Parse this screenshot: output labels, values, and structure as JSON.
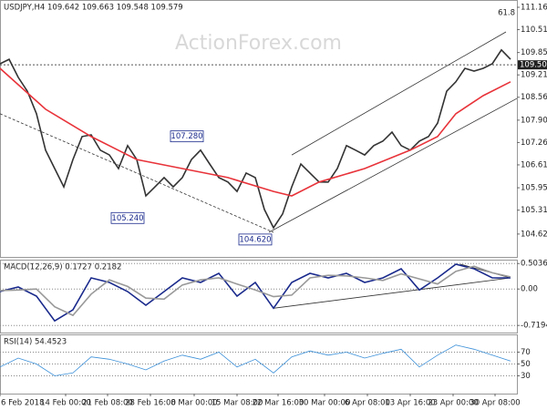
{
  "chart_data": [
    {
      "type": "line",
      "title": "USDJPY,H4  109.642 109.663 109.548 109.579",
      "watermark": "ActionForex.com",
      "xlim": [
        0,
        56.7
      ],
      "ylim": [
        103.96,
        111.37
      ],
      "yticks": [
        {
          "value": 111.16,
          "label": "111.160"
        },
        110.515,
        109.855,
        {
          "value": 109.21,
          "label": "109.210"
        },
        108.565,
        107.905,
        {
          "value": 107.26,
          "label": "107.260"
        },
        106.615,
        105.955,
        {
          "value": 105.31,
          "label": "105.310"
        },
        104.62
      ],
      "grid": false,
      "hline": {
        "value": 109.5,
        "label": "109.500"
      },
      "corner_note": "61.8",
      "series": [
        {
          "color": "#333333",
          "x": [
            0,
            1,
            2,
            3,
            4,
            5,
            6,
            7,
            8,
            9,
            10,
            11,
            12,
            13,
            14,
            15,
            16,
            17,
            18,
            19,
            20,
            21,
            22,
            23,
            24,
            25,
            26,
            27,
            28,
            29,
            30,
            31,
            32,
            33,
            34,
            35,
            36,
            37,
            38,
            39,
            40,
            41,
            42,
            43,
            44,
            45,
            46,
            47,
            48,
            49,
            50,
            51,
            52,
            53,
            54,
            55,
            56
          ],
          "values": [
            109.53,
            109.66,
            109.14,
            108.74,
            108.09,
            107.04,
            106.51,
            105.98,
            106.77,
            107.43,
            107.48,
            107.04,
            106.9,
            106.51,
            107.17,
            106.77,
            105.72,
            105.98,
            106.25,
            105.98,
            106.25,
            106.77,
            107.04,
            106.64,
            106.25,
            106.12,
            105.85,
            106.38,
            106.25,
            105.33,
            104.8,
            105.2,
            105.98,
            106.64,
            106.38,
            106.12,
            106.12,
            106.51,
            107.17,
            107.04,
            106.9,
            107.17,
            107.3,
            107.56,
            107.17,
            107.04,
            107.3,
            107.43,
            107.82,
            108.74,
            109.01,
            109.4,
            109.32,
            109.4,
            109.53,
            109.93,
            109.66
          ]
        },
        {
          "color": "#e8333a",
          "x": [
            0,
            5,
            10,
            15,
            20,
            25,
            30,
            32,
            35,
            40,
            45,
            48,
            50,
            53,
            56
          ],
          "values": [
            109.4,
            108.22,
            107.43,
            106.77,
            106.51,
            106.25,
            105.85,
            105.72,
            106.12,
            106.51,
            107.04,
            107.43,
            108.09,
            108.61,
            109.01
          ]
        }
      ],
      "trendlines": [
        {
          "color": "#333333",
          "x": [
            32,
            55.5
          ],
          "values": [
            106.9,
            110.45
          ]
        },
        {
          "color": "#333333",
          "x": [
            29.5,
            56.7
          ],
          "values": [
            104.67,
            108.53
          ]
        },
        {
          "color": "#333333",
          "dash": true,
          "x": [
            0,
            30
          ],
          "values": [
            108.09,
            104.67
          ]
        }
      ],
      "annotations": [
        {
          "label": "107.280",
          "value": 107.28,
          "x": 20.5
        },
        {
          "label": "105.240",
          "value": 105.24,
          "x": 14
        },
        {
          "label": "104.620",
          "value": 104.62,
          "x": 28
        }
      ]
    },
    {
      "type": "line",
      "title": "MACD(12,26,9) 0.1727 0.2182",
      "xlim": [
        0,
        56.7
      ],
      "ylim": [
        -0.86,
        0.58
      ],
      "yticks": [
        0.5036,
        {
          "value": 0,
          "label": "0.00"
        },
        -0.7194
      ],
      "grid": true,
      "series": [
        {
          "color": "#1a2a8c",
          "x": [
            0,
            2,
            4,
            6,
            8,
            10,
            12,
            14,
            16,
            18,
            20,
            22,
            24,
            26,
            28,
            30,
            32,
            34,
            36,
            38,
            40,
            42,
            44,
            46,
            48,
            50,
            52,
            54,
            56
          ],
          "values": [
            -0.05,
            0.04,
            -0.14,
            -0.63,
            -0.41,
            0.22,
            0.13,
            -0.05,
            -0.32,
            -0.05,
            0.22,
            0.13,
            0.31,
            -0.14,
            0.13,
            -0.38,
            0.13,
            0.31,
            0.22,
            0.31,
            0.13,
            0.22,
            0.4,
            -0.02,
            0.22,
            0.49,
            0.4,
            0.22,
            0.22
          ]
        },
        {
          "color": "#999999",
          "x": [
            0,
            2,
            4,
            6,
            8,
            10,
            12,
            14,
            16,
            18,
            20,
            22,
            24,
            26,
            28,
            30,
            32,
            34,
            36,
            38,
            40,
            42,
            44,
            46,
            48,
            50,
            52,
            54,
            56
          ],
          "values": [
            -0.03,
            -0.02,
            0.0,
            -0.35,
            -0.52,
            -0.1,
            0.18,
            0.05,
            -0.18,
            -0.2,
            0.08,
            0.18,
            0.22,
            0.1,
            -0.02,
            -0.15,
            -0.12,
            0.22,
            0.27,
            0.26,
            0.22,
            0.17,
            0.3,
            0.2,
            0.1,
            0.35,
            0.45,
            0.32,
            0.24
          ]
        }
      ],
      "trendlines": [
        {
          "color": "#333333",
          "x": [
            30,
            56
          ],
          "values": [
            -0.38,
            0.22
          ]
        },
        {
          "color": "#333333",
          "x": [
            50.5,
            56
          ],
          "values": [
            0.49,
            0.22
          ]
        }
      ]
    },
    {
      "type": "line",
      "title": "RSI(14) 54.4523",
      "xlim": [
        0,
        56.7
      ],
      "ylim": [
        0,
        100
      ],
      "yticks": [
        70,
        50,
        30
      ],
      "grid": true,
      "xticks": [
        {
          "value": 0,
          "label": "6 Feb 2018"
        },
        {
          "value": 7.2,
          "label": "14 Feb 00:00"
        },
        {
          "value": 11.8,
          "label": "21 Feb 08:00"
        },
        {
          "value": 16.5,
          "label": "28 Feb 16:00"
        },
        {
          "value": 21.3,
          "label": "8 Mar 00:00"
        },
        {
          "value": 26,
          "label": "15 Mar 08:00"
        },
        {
          "value": 30.5,
          "label": "22 Mar 16:00"
        },
        {
          "value": 35.6,
          "label": "30 Mar 00:00"
        },
        {
          "value": 40.3,
          "label": "6 Apr 08:00"
        },
        {
          "value": 45,
          "label": "13 Apr 16:00"
        },
        {
          "value": 49.7,
          "label": "23 Apr 00:00"
        },
        {
          "value": 54.3,
          "label": "30 Apr 08:00"
        }
      ],
      "series": [
        {
          "color": "#3a8fd8",
          "x": [
            0,
            2,
            4,
            6,
            8,
            10,
            12,
            14,
            16,
            18,
            20,
            22,
            24,
            26,
            28,
            30,
            32,
            34,
            36,
            38,
            40,
            42,
            44,
            46,
            48,
            50,
            52,
            54,
            56
          ],
          "values": [
            45,
            60,
            50,
            30,
            35,
            62,
            58,
            50,
            40,
            55,
            65,
            58,
            70,
            45,
            58,
            35,
            62,
            72,
            65,
            70,
            60,
            68,
            75,
            45,
            65,
            82,
            75,
            65,
            55
          ]
        }
      ]
    }
  ]
}
